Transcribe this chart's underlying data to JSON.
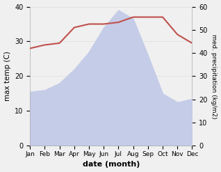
{
  "months": [
    "Jan",
    "Feb",
    "Mar",
    "Apr",
    "May",
    "Jun",
    "Jul",
    "Aug",
    "Sep",
    "Oct",
    "Nov",
    "Dec"
  ],
  "max_temp": [
    28.0,
    29.0,
    29.5,
    34.0,
    35.0,
    35.0,
    35.5,
    37.0,
    37.0,
    37.0,
    32.0,
    29.5
  ],
  "precipitation": [
    15.5,
    16.0,
    18.0,
    22.0,
    27.0,
    34.0,
    39.0,
    36.5,
    26.0,
    15.0,
    12.5,
    13.5
  ],
  "temp_color": "#c0504d",
  "precip_fill_color": "#c5cce8",
  "ylabel_left": "max temp (C)",
  "ylabel_right": "med. precipitation (kg/m2)",
  "xlabel": "date (month)",
  "ylim_left": [
    0,
    40
  ],
  "ylim_right": [
    0,
    60
  ],
  "yticks_left": [
    0,
    10,
    20,
    30,
    40
  ],
  "yticks_right": [
    0,
    10,
    20,
    30,
    40,
    50,
    60
  ],
  "bg_color": "#f0f0f0",
  "plot_bg_color": "#ffffff",
  "grid_color": "#dddddd",
  "spine_color": "#aaaaaa"
}
